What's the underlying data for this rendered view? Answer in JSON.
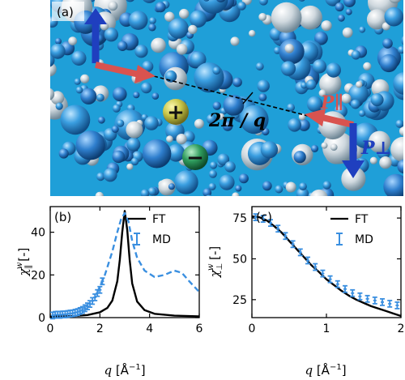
{
  "panel_a": {
    "label": "(a)",
    "vector_q": "2π / q",
    "vector_p_par": "P∥",
    "vector_p_perp": "P⊥",
    "ion_plus": "+",
    "ion_minus": "−",
    "colors": {
      "water_bg": "#1f9fd8",
      "arrow_red": "#d9534f",
      "arrow_blue": "#1f3fbf",
      "ion_plus": "#d7d25a",
      "ion_minus": "#2a8f58"
    }
  },
  "chart_data": [
    {
      "type": "line",
      "panel_label": "(b)",
      "xlabel": "q [Å⁻¹]",
      "ylabel": "χ∥ʷ [-]",
      "xlim": [
        0,
        6
      ],
      "ylim": [
        0,
        52
      ],
      "xticks": [
        0,
        2,
        4,
        6
      ],
      "yticks": [
        0,
        20,
        40
      ],
      "legend_position": "top-right",
      "series": [
        {
          "name": "FT",
          "style": "solid",
          "color": "#000000",
          "x": [
            0,
            0.5,
            1.0,
            1.5,
            2.0,
            2.3,
            2.5,
            2.7,
            2.8,
            2.9,
            3.0,
            3.1,
            3.2,
            3.3,
            3.5,
            3.8,
            4.2,
            5.0,
            6.0
          ],
          "y": [
            0.5,
            0.6,
            0.8,
            1.2,
            2.5,
            4.5,
            8,
            17,
            27,
            40,
            50,
            41,
            27,
            16,
            7.5,
            3.5,
            1.8,
            0.9,
            0.6
          ]
        },
        {
          "name": "",
          "style": "dashed",
          "color": "#3a8fe0",
          "x": [
            1.9,
            2.2,
            2.5,
            2.7,
            2.85,
            3.0,
            3.15,
            3.3,
            3.5,
            3.8,
            4.2,
            4.6,
            5.0,
            5.3,
            5.6,
            6.0
          ],
          "y": [
            12,
            20,
            31,
            40,
            46,
            49,
            45,
            36,
            28,
            22,
            19,
            20,
            22,
            21,
            17,
            12
          ]
        },
        {
          "name": "MD",
          "style": "errorbars",
          "color": "#3a8fe0",
          "x": [
            0.1,
            0.2,
            0.3,
            0.4,
            0.5,
            0.6,
            0.7,
            0.8,
            0.9,
            1.0,
            1.1,
            1.2,
            1.3,
            1.4,
            1.5,
            1.6,
            1.7,
            1.8,
            1.9,
            2.0,
            2.1
          ],
          "y": [
            1,
            1.3,
            1.4,
            1.3,
            1.5,
            1.5,
            1.7,
            1.9,
            2.0,
            2.3,
            2.6,
            3.1,
            3.6,
            4.4,
            5.3,
            6.4,
            7.8,
            9.5,
            11.5,
            13,
            17
          ]
        }
      ]
    },
    {
      "type": "line",
      "panel_label": "(c)",
      "xlabel": "q [Å⁻¹]",
      "ylabel": "χ⊥ʷ [-]",
      "xlim": [
        0,
        2
      ],
      "ylim": [
        14,
        82
      ],
      "xticks": [
        0,
        1,
        2
      ],
      "yticks": [
        25,
        50,
        75
      ],
      "legend_position": "top-right",
      "series": [
        {
          "name": "FT",
          "style": "solid",
          "color": "#000000",
          "x": [
            0,
            0.1,
            0.2,
            0.3,
            0.4,
            0.5,
            0.6,
            0.7,
            0.8,
            0.9,
            1.0,
            1.1,
            1.2,
            1.3,
            1.4,
            1.5,
            1.6,
            1.7,
            1.8,
            1.9,
            2.0
          ],
          "y": [
            76,
            75.5,
            73.5,
            70,
            66,
            61,
            56,
            51,
            46,
            42,
            37.5,
            34,
            30.5,
            27.5,
            25,
            23,
            21,
            19.5,
            18,
            16.5,
            15
          ]
        },
        {
          "name": "MD",
          "style": "errorbars",
          "color": "#3a8fe0",
          "x": [
            0.05,
            0.15,
            0.25,
            0.35,
            0.45,
            0.55,
            0.65,
            0.75,
            0.85,
            0.95,
            1.05,
            1.15,
            1.25,
            1.35,
            1.45,
            1.55,
            1.65,
            1.75,
            1.85,
            1.95
          ],
          "y": [
            75.5,
            74.5,
            72,
            68.5,
            64,
            59,
            54,
            49,
            45,
            41,
            37.5,
            34.5,
            31.5,
            29,
            27,
            25.5,
            24.5,
            23.5,
            22.5,
            21.5
          ]
        }
      ]
    }
  ]
}
